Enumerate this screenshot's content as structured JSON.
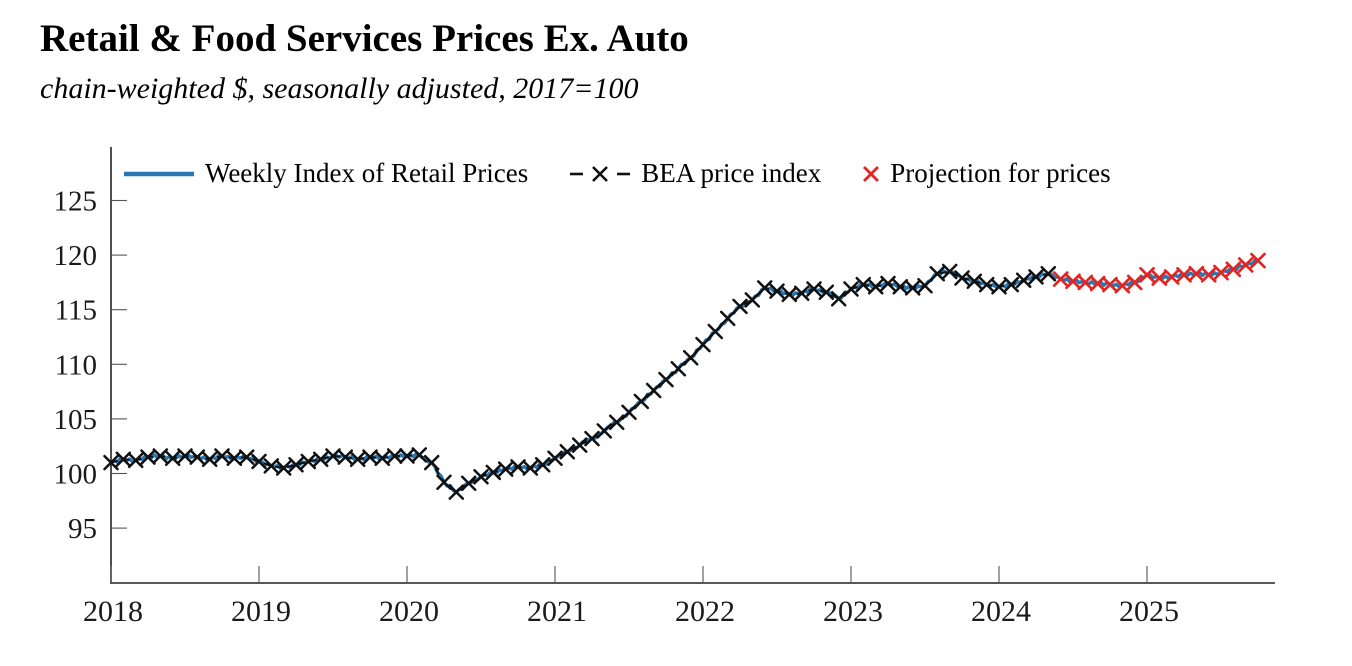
{
  "chart_data": {
    "type": "line",
    "title": "Retail & Food Services Prices Ex. Auto",
    "subtitle": "chain-weighted $, seasonally adjusted, 2017=100",
    "grid": false,
    "legend_position": "top-left-inside",
    "x_axis": {
      "tick_labels": [
        "2018",
        "2019",
        "2020",
        "2021",
        "2022",
        "2023",
        "2024",
        "2025"
      ],
      "start_month": "2018-01",
      "end_month": "2025-10"
    },
    "y_axis": {
      "tick_labels": [
        "95",
        "100",
        "105",
        "110",
        "115",
        "120",
        "125"
      ],
      "tick_values": [
        95,
        100,
        105,
        110,
        115,
        120,
        125
      ],
      "range_shown": [
        91.5,
        128.5
      ]
    },
    "series": [
      {
        "name": "Weekly Index of Retail Prices",
        "type": "solid line",
        "color": "#2877b4",
        "tracks": "monthly anchors of the two x-marker series with small weekly wiggle",
        "wiggle_offsets": [
          0.13,
          -0.11,
          0.15,
          -0.08,
          0.07,
          -0.13,
          0.1,
          -0.06
        ]
      },
      {
        "name": "BEA price index",
        "type": "dashed line with x markers",
        "color": "#101010",
        "start_month": "2018-01",
        "values": [
          101.0,
          101.3,
          101.2,
          101.5,
          101.6,
          101.4,
          101.6,
          101.5,
          101.3,
          101.6,
          101.4,
          101.5,
          101.1,
          100.7,
          100.5,
          100.8,
          101.1,
          101.3,
          101.6,
          101.5,
          101.3,
          101.5,
          101.4,
          101.6,
          101.6,
          101.7,
          101.0,
          99.2,
          98.3,
          99.1,
          99.7,
          100.1,
          100.4,
          100.6,
          100.5,
          100.8,
          101.4,
          102.0,
          102.6,
          103.2,
          103.9,
          104.7,
          105.6,
          106.6,
          107.6,
          108.6,
          109.6,
          110.6,
          111.8,
          113.0,
          114.2,
          115.3,
          115.9,
          117.0,
          116.7,
          116.4,
          116.5,
          116.9,
          116.6,
          116.0,
          116.9,
          117.3,
          117.1,
          117.4,
          117.1,
          117.0,
          117.2,
          118.3,
          118.5,
          117.9,
          117.6,
          117.3,
          117.1,
          117.3,
          117.7,
          118.0,
          118.3
        ]
      },
      {
        "name": "Projection for prices",
        "type": "x markers",
        "color": "#e42420",
        "start_month": "2024-06",
        "values": [
          117.8,
          117.6,
          117.5,
          117.4,
          117.3,
          117.2,
          117.5,
          118.2,
          117.9,
          118.0,
          118.2,
          118.3,
          118.2,
          118.4,
          118.7,
          119.1,
          119.5
        ]
      }
    ]
  }
}
